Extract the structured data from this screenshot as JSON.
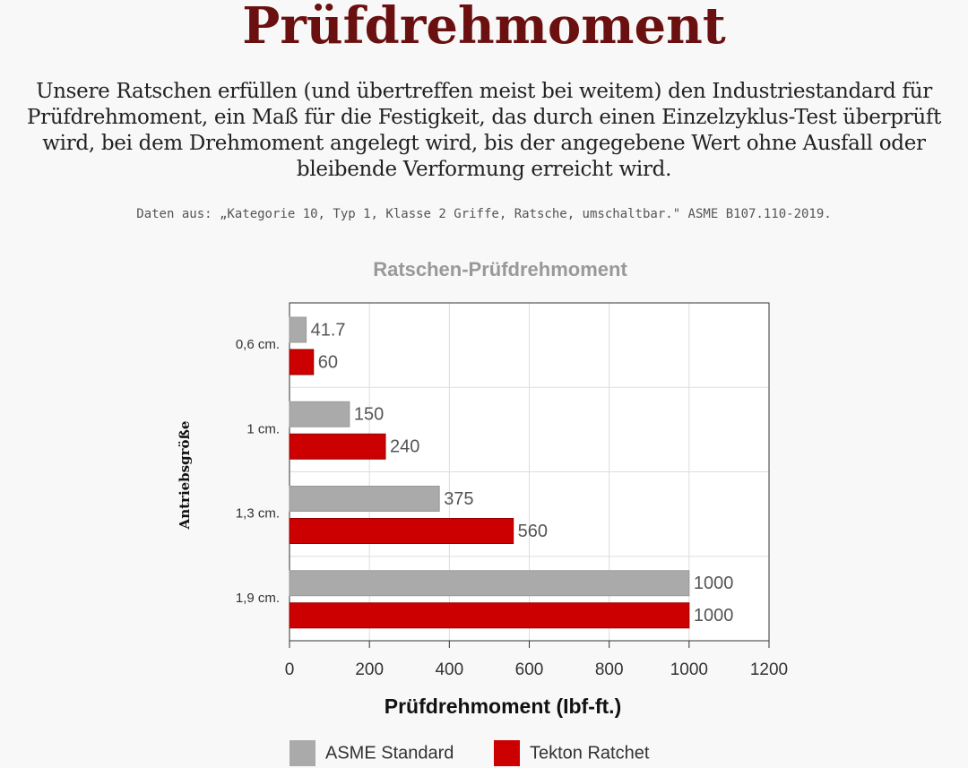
{
  "heading": "Prüfdrehmoment",
  "intro": "Unsere Ratschen erfüllen (und übertreffen meist bei weitem) den Industriestandard für Prüfdrehmoment, ein Maß für die Festigkeit, das durch einen Einzelzyklus-Test überprüft wird, bei dem Drehmoment angelegt wird, bis der angegebene Wert ohne Ausfall oder bleibende Verformung erreicht wird.",
  "source": "Daten aus: „Kategorie 10, Typ 1, Klasse 2 Griffe, Ratsche, umschaltbar.\" ASME B107.110-2019.",
  "chart_data": {
    "type": "hbar",
    "title": "Ratschen-Prüfdrehmoment",
    "x_label": "Prüfdrehmoment (Ibf-ft.)",
    "y_label": "Antriebsgröße",
    "categories": [
      "0,6 cm.",
      "1 cm.",
      "1,3 cm.",
      "1,9 cm."
    ],
    "series": [
      {
        "name": "ASME Standard",
        "color": "#aaaaaa",
        "values": [
          41.7,
          150,
          375,
          1000
        ]
      },
      {
        "name": "Tekton Ratchet",
        "color": "#cc0000",
        "values": [
          60,
          240,
          560,
          1000
        ]
      }
    ],
    "xlim": [
      0,
      1200
    ],
    "xticks": [
      0,
      200,
      400,
      600,
      800,
      1000,
      1200
    ],
    "grid": true
  }
}
